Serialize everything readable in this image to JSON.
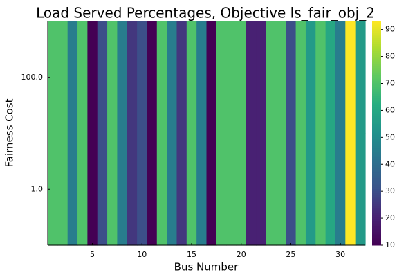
{
  "chart_data": {
    "type": "heatmap",
    "title": "Load Served Percentages, Objective ls_fair_obj_2",
    "xlabel": "Bus Number",
    "ylabel": "Fairness Cost",
    "x": [
      1,
      2,
      3,
      4,
      5,
      6,
      7,
      8,
      9,
      10,
      11,
      12,
      13,
      14,
      15,
      16,
      17,
      18,
      19,
      20,
      21,
      22,
      23,
      24,
      25,
      26,
      27,
      28,
      29,
      30,
      31,
      32
    ],
    "y_categories": [
      "1.0",
      "100.0"
    ],
    "x_ticks": [
      5,
      10,
      15,
      20,
      25,
      30
    ],
    "values": [
      [
        70,
        70,
        45,
        70,
        10,
        30,
        70,
        45,
        25,
        30,
        10,
        70,
        45,
        25,
        70,
        45,
        10,
        70,
        70,
        70,
        20,
        20,
        70,
        70,
        30,
        70,
        55,
        70,
        60,
        45,
        93,
        55
      ],
      [
        70,
        70,
        45,
        70,
        10,
        30,
        70,
        45,
        25,
        30,
        10,
        70,
        45,
        25,
        70,
        45,
        10,
        70,
        70,
        70,
        20,
        20,
        70,
        70,
        30,
        70,
        55,
        70,
        60,
        45,
        93,
        55
      ]
    ],
    "colorbar": {
      "min": 10,
      "max": 93,
      "ticks": [
        10,
        20,
        30,
        40,
        50,
        60,
        70,
        80,
        90
      ],
      "colormap": "viridis"
    },
    "grid": false,
    "legend": "colorbar-right"
  }
}
